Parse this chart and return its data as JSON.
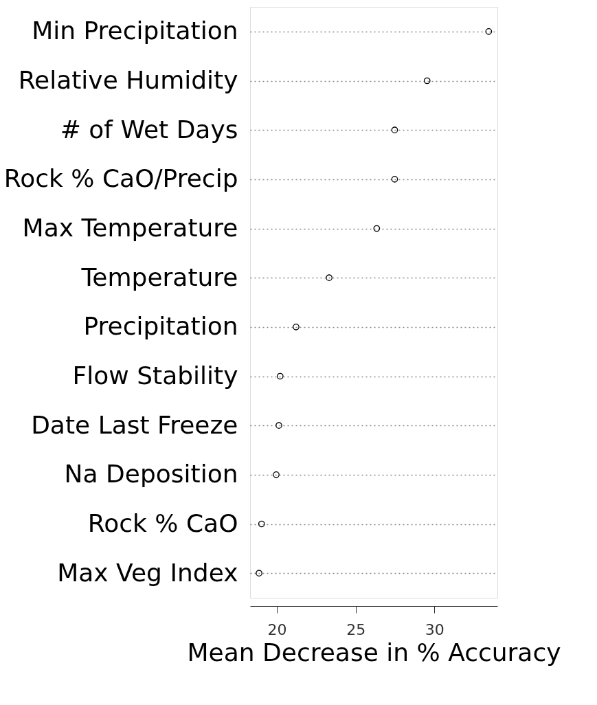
{
  "chart_data": {
    "type": "scatter",
    "orientation": "horizontal",
    "xlabel": "Mean Decrease in % Accuracy",
    "categories": [
      "Min Precipitation",
      "Relative Humidity",
      "# of Wet Days",
      "Rock % CaO/Precip",
      "Max Temperature",
      "Temperature",
      "Precipitation",
      "Flow Stability",
      "Date Last Freeze",
      "Na Deposition",
      "Rock % CaO",
      "Max Veg Index"
    ],
    "series": [
      {
        "color": "#000000",
        "values": [
          33.45,
          29.54,
          27.48,
          27.48,
          26.34,
          23.32,
          21.22,
          20.21,
          20.13,
          19.96,
          19.03,
          18.87
        ]
      }
    ],
    "xlim": [
      18.3,
      34.0
    ],
    "xticks": [
      20,
      25,
      30
    ],
    "grid": "y",
    "line_style": "dotted",
    "marker": "circle"
  }
}
